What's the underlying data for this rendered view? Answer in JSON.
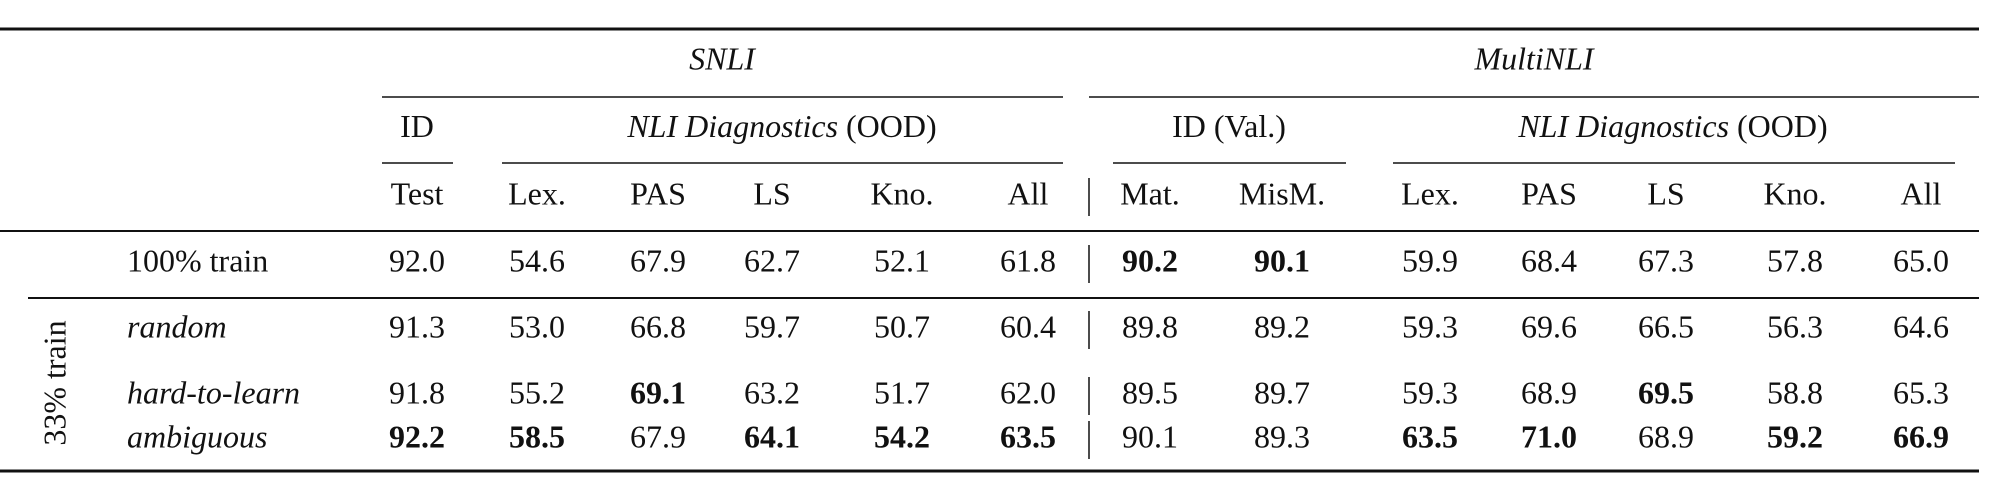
{
  "table": {
    "groups": [
      "SNLI",
      "MultiNLI"
    ],
    "subgroups": [
      {
        "italic": "",
        "plain": "ID"
      },
      {
        "italic": "NLI Diagnostics",
        "plain": "(OOD)"
      },
      {
        "italic": "",
        "plain": "ID (Val.)"
      },
      {
        "italic": "NLI Diagnostics",
        "plain": "(OOD)"
      }
    ],
    "columns": [
      "Test",
      "Lex.",
      "PAS",
      "LS",
      "Kno.",
      "All",
      "Mat.",
      "MisM.",
      "Lex.",
      "PAS",
      "LS",
      "Kno.",
      "All"
    ],
    "row_group_label": "33% train",
    "rows": [
      {
        "label": "100% train",
        "italic": false,
        "values": [
          "92.0",
          "54.6",
          "67.9",
          "62.7",
          "52.1",
          "61.8",
          "90.2",
          "90.1",
          "59.9",
          "68.4",
          "67.3",
          "57.8",
          "65.0"
        ],
        "bold": [
          6,
          7
        ]
      },
      {
        "label": "random",
        "italic": true,
        "values": [
          "91.3",
          "53.0",
          "66.8",
          "59.7",
          "50.7",
          "60.4",
          "89.8",
          "89.2",
          "59.3",
          "69.6",
          "66.5",
          "56.3",
          "64.6"
        ],
        "bold": []
      },
      {
        "label": "hard-to-learn",
        "italic": true,
        "values": [
          "91.8",
          "55.2",
          "69.1",
          "63.2",
          "51.7",
          "62.0",
          "89.5",
          "89.7",
          "59.3",
          "68.9",
          "69.5",
          "58.8",
          "65.3"
        ],
        "bold": [
          2,
          10
        ]
      },
      {
        "label": "ambiguous",
        "italic": true,
        "values": [
          "92.2",
          "58.5",
          "67.9",
          "64.1",
          "54.2",
          "63.5",
          "90.1",
          "89.3",
          "63.5",
          "71.0",
          "68.9",
          "59.2",
          "66.9"
        ],
        "bold": [
          0,
          1,
          3,
          4,
          5,
          8,
          9,
          11,
          12
        ]
      }
    ]
  }
}
